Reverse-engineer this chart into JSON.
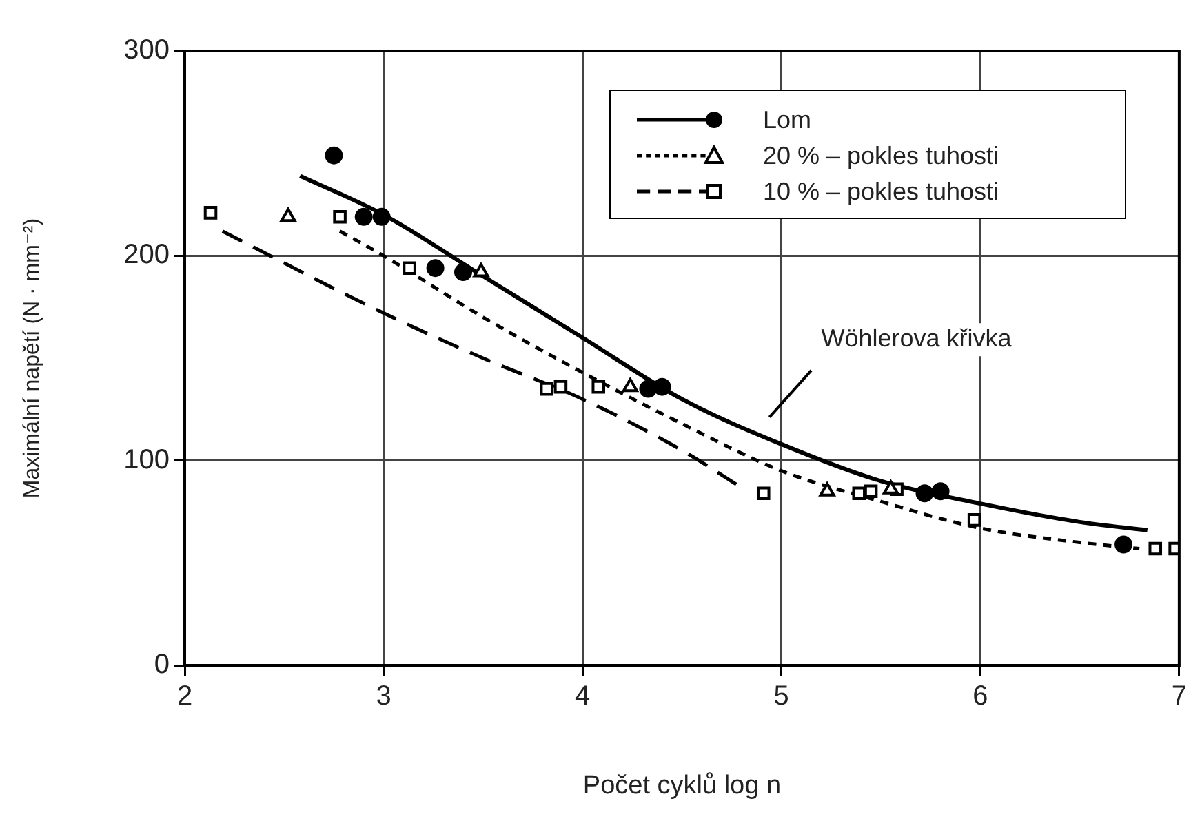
{
  "chart_data": {
    "type": "scatter",
    "xlabel": "Počet cyklů log n",
    "ylabel": "Maximální napětí (N · mm⁻²)",
    "xlim": [
      2,
      7
    ],
    "ylim": [
      0,
      300
    ],
    "xticks": [
      2,
      3,
      4,
      5,
      6,
      7
    ],
    "yticks": [
      0,
      100,
      200,
      300
    ],
    "grid": true,
    "legend": "top right",
    "annotations": [
      "Wöhlerova křivka"
    ],
    "series": [
      {
        "name": "Lom",
        "type": "scatter",
        "marker": "circle",
        "color": "#000000",
        "x": [
          2.75,
          2.9,
          2.99,
          3.26,
          3.4,
          4.33,
          4.4,
          5.72,
          5.8,
          6.72
        ],
        "values": [
          249,
          219,
          219,
          194,
          192,
          135,
          136,
          84,
          85,
          59
        ]
      },
      {
        "type": "line",
        "marker": "none",
        "line_style": "solid",
        "color": "#000000",
        "x": [
          2.58,
          3,
          3.5,
          4,
          4.5,
          5,
          5.5,
          6,
          6.5,
          6.84
        ],
        "values": [
          239,
          220,
          190,
          160,
          130,
          108,
          90,
          79,
          70,
          66
        ]
      },
      {
        "name": "20 % – pokles tuhosti",
        "type": "scatter",
        "marker": "triangle",
        "color": "#000000",
        "x": [
          2.52,
          3.49,
          4.24,
          5.23,
          5.55
        ],
        "values": [
          219,
          192,
          136,
          85,
          86
        ]
      },
      {
        "type": "line",
        "marker": "none",
        "line_style": "dotted",
        "color": "#000000",
        "x": [
          2.78,
          3,
          3.5,
          4,
          4.5,
          5,
          5.5,
          6,
          6.5,
          6.8
        ],
        "values": [
          212,
          200,
          170,
          143,
          118,
          95,
          80,
          67,
          60,
          57
        ]
      },
      {
        "name": "10 % – pokles tuhosti",
        "type": "scatter",
        "marker": "square",
        "color": "#000000",
        "x": [
          2.13,
          2.78,
          3.13,
          3.82,
          3.89,
          4.08,
          4.91,
          5.39,
          5.45,
          5.58,
          5.97,
          6.88,
          6.98
        ],
        "values": [
          221,
          219,
          194,
          135,
          136,
          136,
          84,
          84,
          85,
          86,
          71,
          57,
          57
        ]
      },
      {
        "type": "line",
        "marker": "none",
        "line_style": "dashed",
        "color": "#000000",
        "x": [
          2.19,
          3,
          3.5,
          4,
          4.5,
          4.78
        ],
        "values": [
          212,
          172,
          150,
          130,
          105,
          88
        ]
      }
    ]
  }
}
